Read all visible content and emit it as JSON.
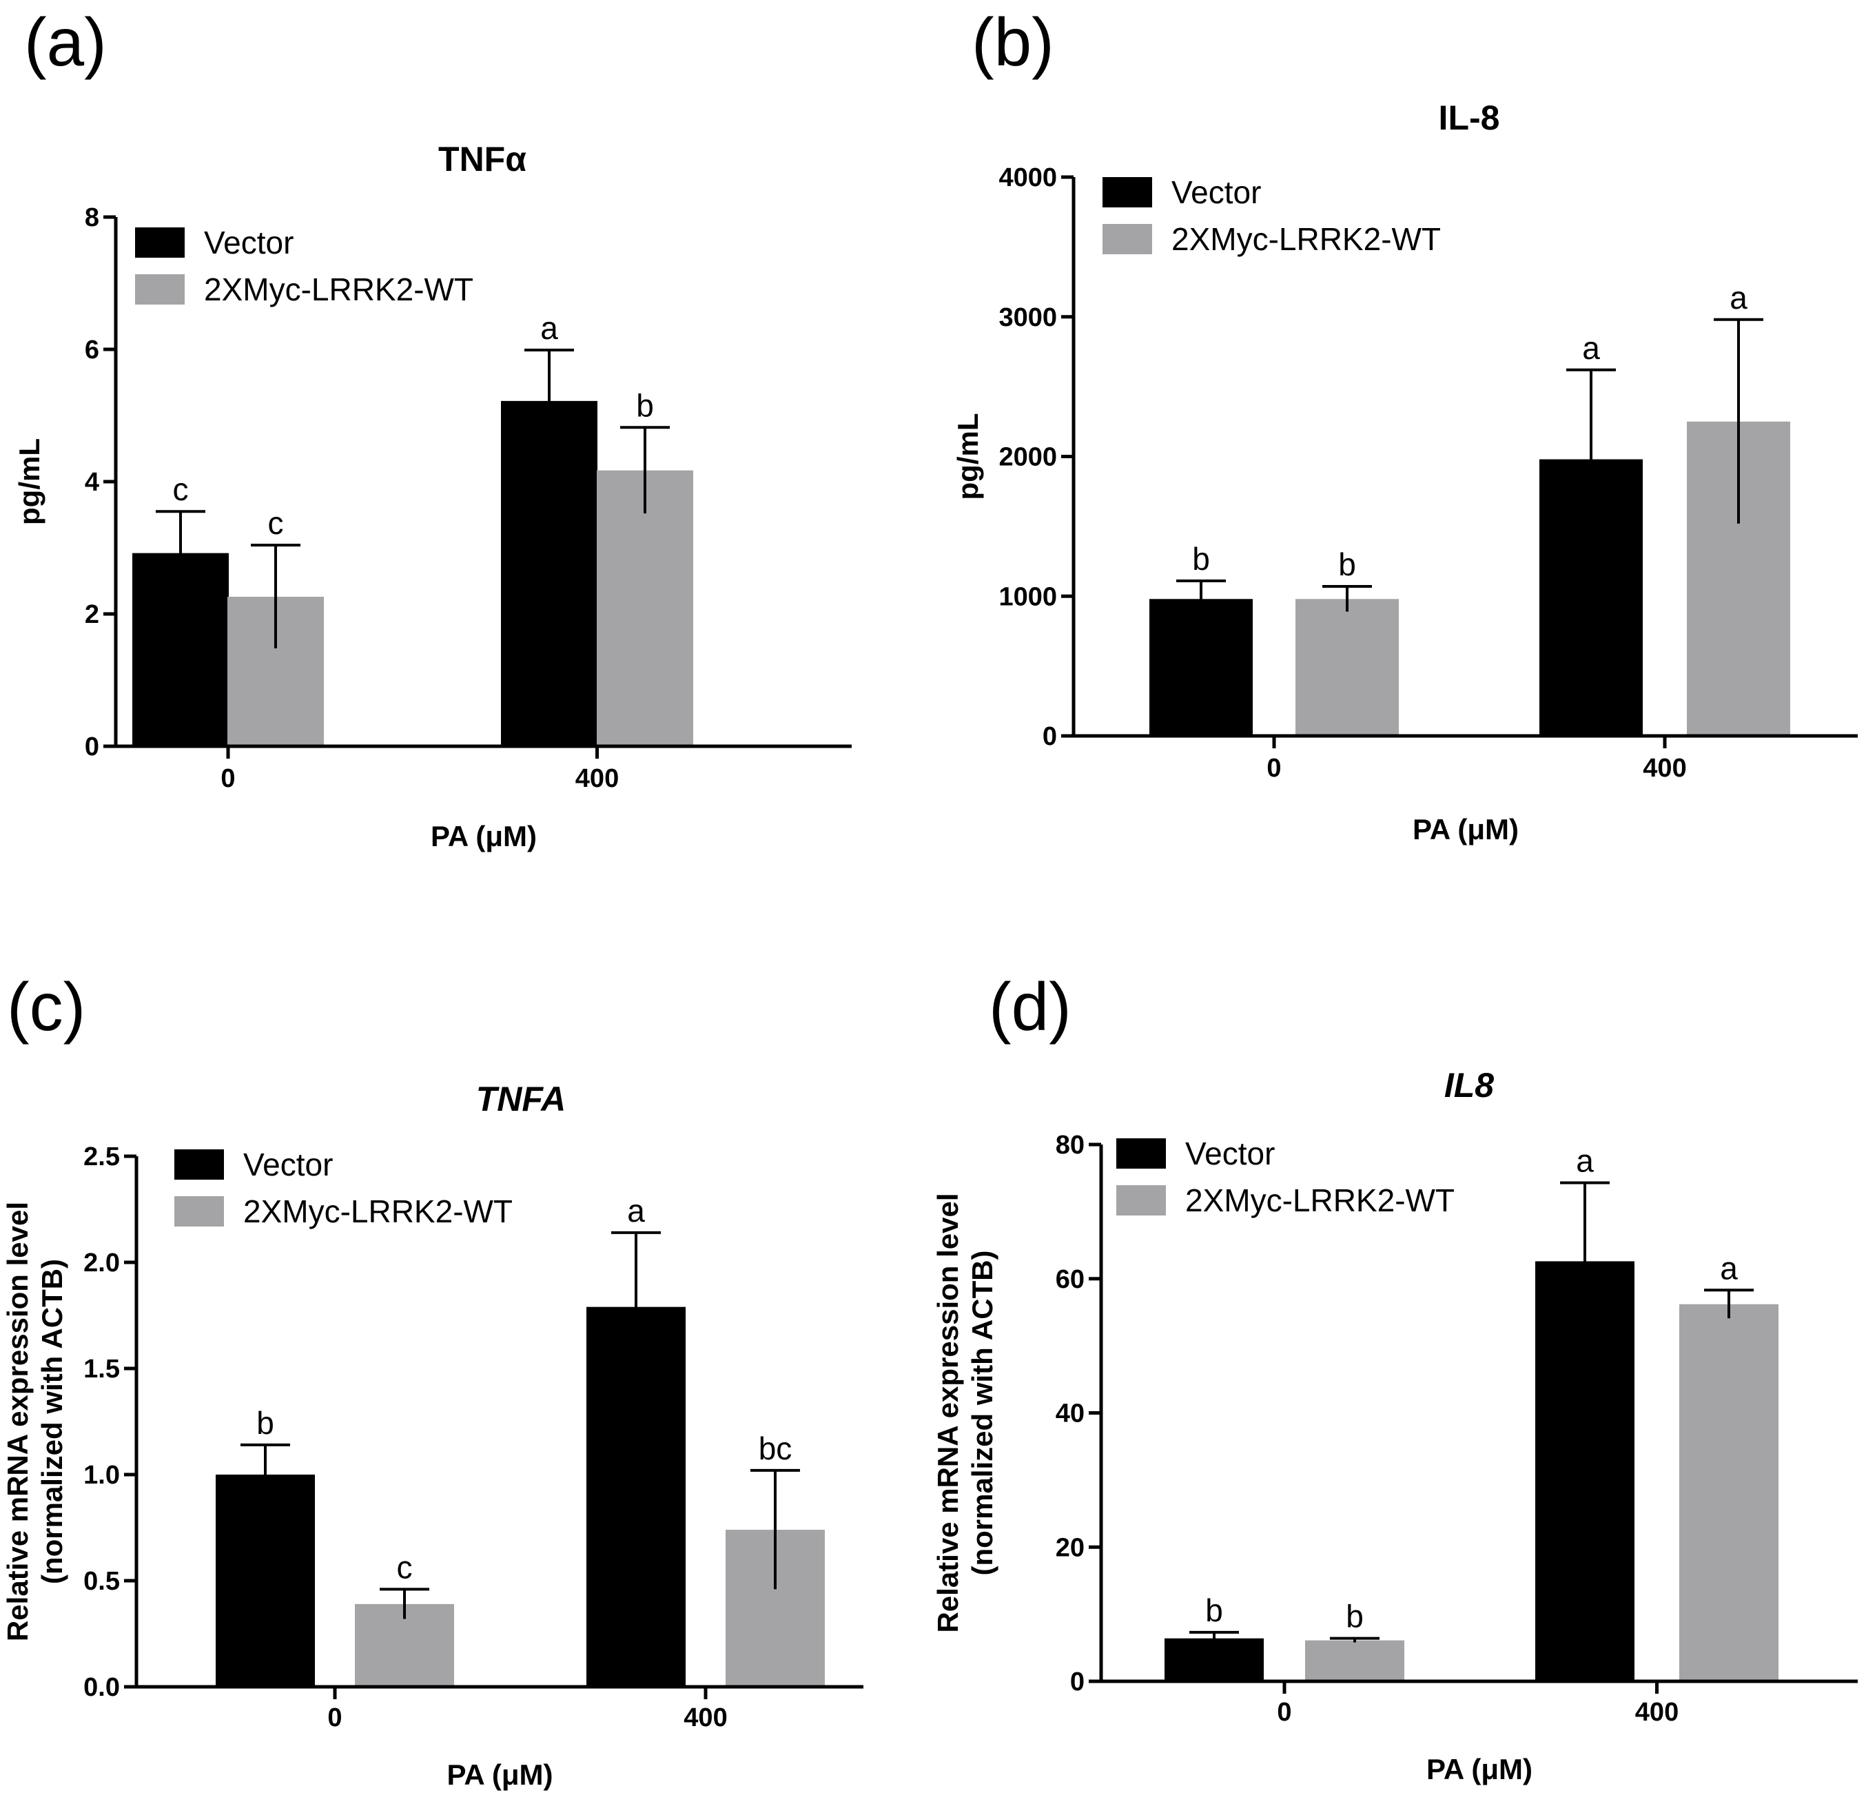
{
  "colors": {
    "vector": "#000000",
    "lrrk2": "#a4a4a6"
  },
  "chart_data": [
    {
      "type": "bar",
      "panel": "(a)",
      "title": "TNFα",
      "title_italic": false,
      "xlabel": "PA (μM)",
      "ylabel": [
        "pg/mL"
      ],
      "categories": [
        "0",
        "400"
      ],
      "ylim": [
        0,
        8
      ],
      "yticks": [
        "0",
        "2",
        "4",
        "6",
        "8"
      ],
      "series": [
        {
          "name": "Vector",
          "values": [
            2.92,
            5.22
          ],
          "errors": [
            0.63,
            0.77
          ],
          "labels": [
            "c",
            "a"
          ]
        },
        {
          "name": "2XMyc-LRRK2-WT",
          "values": [
            2.26,
            4.17
          ],
          "errors": [
            0.78,
            0.65
          ],
          "labels": [
            "c",
            "b"
          ]
        }
      ]
    },
    {
      "type": "bar",
      "panel": "(b)",
      "title": "IL-8",
      "title_italic": false,
      "xlabel": "PA (μM)",
      "ylabel": [
        "pg/mL"
      ],
      "categories": [
        "0",
        "400"
      ],
      "ylim": [
        0,
        4000
      ],
      "yticks": [
        "0",
        "1000",
        "2000",
        "3000",
        "4000"
      ],
      "series": [
        {
          "name": "Vector",
          "values": [
            980,
            1980
          ],
          "errors": [
            130,
            640
          ],
          "labels": [
            "b",
            "a"
          ]
        },
        {
          "name": "2XMyc-LRRK2-WT",
          "values": [
            980,
            2250
          ],
          "errors": [
            90,
            730
          ],
          "labels": [
            "b",
            "a"
          ]
        }
      ]
    },
    {
      "type": "bar",
      "panel": "(c)",
      "title": "TNFA",
      "title_italic": true,
      "xlabel": "PA (μM)",
      "ylabel": [
        "Relative mRNA expression level",
        "(normalized with ACTB)"
      ],
      "categories": [
        "0",
        "400"
      ],
      "ylim": [
        0,
        2.5
      ],
      "yticks": [
        "0.0",
        "0.5",
        "1.0",
        "1.5",
        "2.0",
        "2.5"
      ],
      "series": [
        {
          "name": "Vector",
          "values": [
            1.0,
            1.79
          ],
          "errors": [
            0.14,
            0.35
          ],
          "labels": [
            "b",
            "a"
          ]
        },
        {
          "name": "2XMyc-LRRK2-WT",
          "values": [
            0.39,
            0.74
          ],
          "errors": [
            0.07,
            0.28
          ],
          "labels": [
            "c",
            "bc"
          ]
        }
      ]
    },
    {
      "type": "bar",
      "panel": "(d)",
      "title": "IL8",
      "title_italic": true,
      "xlabel": "PA (μM)",
      "ylabel": [
        "Relative mRNA expression level",
        "(normalized with ACTB)"
      ],
      "categories": [
        "0",
        "400"
      ],
      "ylim": [
        0,
        80
      ],
      "yticks": [
        "0",
        "20",
        "40",
        "60",
        "80"
      ],
      "series": [
        {
          "name": "Vector",
          "values": [
            6.4,
            62.6
          ],
          "errors": [
            0.9,
            11.7
          ],
          "labels": [
            "b",
            "a"
          ]
        },
        {
          "name": "2XMyc-LRRK2-WT",
          "values": [
            6.1,
            56.2
          ],
          "errors": [
            0.3,
            2.1
          ],
          "labels": [
            "b",
            "a"
          ]
        }
      ]
    }
  ]
}
